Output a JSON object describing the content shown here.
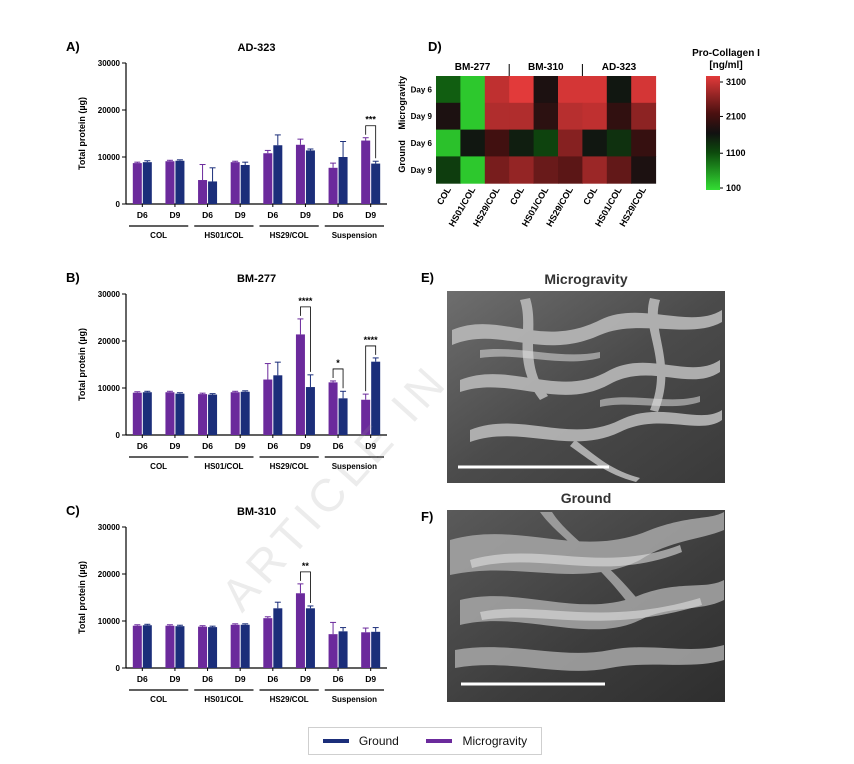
{
  "legend": {
    "ground_label": "Ground",
    "ground_color": "#1b2e7a",
    "micro_label": "Microgravity",
    "micro_color": "#6b2a9c"
  },
  "watermark": "ARTICLE IN",
  "bar_charts": {
    "y_label": "Total protein (µg)",
    "y_ticks": [
      "0",
      "10000",
      "20000",
      "30000"
    ],
    "ylim": [
      0,
      30000
    ],
    "x_tick_labels": [
      "D6",
      "D9"
    ],
    "group_labels": [
      "COL",
      "HS01/COL",
      "HS29/COL",
      "Suspension"
    ]
  },
  "chart_data": [
    {
      "type": "bar",
      "panel": "A)",
      "title": "AD-323",
      "ylabel": "Total protein (µg)",
      "ylim": [
        0,
        30000
      ],
      "groups": [
        "COL",
        "HS01/COL",
        "HS29/COL",
        "Suspension"
      ],
      "categories": [
        "D6",
        "D9",
        "D6",
        "D9",
        "D6",
        "D9",
        "D6",
        "D9"
      ],
      "series": [
        {
          "name": "Microgravity",
          "values": [
            8700,
            9100,
            5100,
            8900,
            10800,
            12600,
            7700,
            13500
          ],
          "errors": [
            200,
            200,
            3300,
            200,
            600,
            1200,
            1000,
            600
          ]
        },
        {
          "name": "Ground",
          "values": [
            8900,
            9200,
            4800,
            8300,
            12500,
            11400,
            10000,
            8600
          ],
          "errors": [
            300,
            200,
            2900,
            600,
            2200,
            300,
            3300,
            500
          ]
        }
      ],
      "significance": [
        {
          "category": 7,
          "label": "***"
        }
      ]
    },
    {
      "type": "bar",
      "panel": "B)",
      "title": "BM-277",
      "ylabel": "Total protein (µg)",
      "ylim": [
        0,
        30000
      ],
      "groups": [
        "COL",
        "HS01/COL",
        "HS29/COL",
        "Suspension"
      ],
      "categories": [
        "D6",
        "D9",
        "D6",
        "D9",
        "D6",
        "D9",
        "D6",
        "D9"
      ],
      "series": [
        {
          "name": "Microgravity",
          "values": [
            9000,
            9100,
            8700,
            9100,
            11800,
            21400,
            11200,
            7500
          ],
          "errors": [
            200,
            200,
            200,
            200,
            3400,
            3300,
            300,
            1200
          ]
        },
        {
          "name": "Ground",
          "values": [
            9100,
            8800,
            8600,
            9200,
            12700,
            10200,
            7800,
            15600
          ],
          "errors": [
            200,
            200,
            200,
            200,
            2800,
            2600,
            1500,
            800
          ]
        }
      ],
      "significance": [
        {
          "category": 5,
          "label": "****"
        },
        {
          "category": 6,
          "label": "*"
        },
        {
          "category": 7,
          "label": "****"
        }
      ]
    },
    {
      "type": "bar",
      "panel": "C)",
      "title": "BM-310",
      "ylabel": "Total protein (µg)",
      "ylim": [
        0,
        30000
      ],
      "groups": [
        "COL",
        "HS01/COL",
        "HS29/COL",
        "Suspension"
      ],
      "categories": [
        "D6",
        "D9",
        "D6",
        "D9",
        "D6",
        "D9",
        "D6",
        "D9"
      ],
      "series": [
        {
          "name": "Microgravity",
          "values": [
            9000,
            9000,
            8800,
            9200,
            10600,
            15900,
            7200,
            7600
          ],
          "errors": [
            200,
            200,
            200,
            200,
            300,
            2000,
            2500,
            900
          ]
        },
        {
          "name": "Ground",
          "values": [
            9100,
            8900,
            8700,
            9200,
            12700,
            12700,
            7800,
            7700
          ],
          "errors": [
            200,
            200,
            200,
            200,
            1300,
            500,
            800,
            900
          ]
        }
      ],
      "significance": [
        {
          "category": 5,
          "label": "**"
        }
      ]
    },
    {
      "type": "heatmap",
      "panel": "D)",
      "column_groups": [
        "BM-277",
        "BM-310",
        "AD-323"
      ],
      "columns": [
        "COL",
        "HS01/COL",
        "HS29/COL",
        "COL",
        "HS01/COL",
        "HS29/COL",
        "COL",
        "HS01/COL",
        "HS29/COL"
      ],
      "row_groups": [
        "Microgravity",
        "Ground"
      ],
      "rows": [
        "Day 6",
        "Day 9",
        "Day 6",
        "Day 9"
      ],
      "values": [
        [
          1000,
          250,
          2950,
          3200,
          1700,
          3100,
          3100,
          1550,
          3100
        ],
        [
          1700,
          250,
          2850,
          2850,
          1850,
          2900,
          2950,
          1900,
          2600
        ],
        [
          300,
          1550,
          2050,
          1500,
          1200,
          2550,
          1550,
          1350,
          1950
        ],
        [
          1250,
          250,
          2450,
          2650,
          2350,
          2250,
          2700,
          2300,
          1700
        ]
      ],
      "colorbar_title": "Pro-Collagen I [ng/ml]",
      "colorbar_ticks": [
        3100,
        2100,
        1100,
        100
      ],
      "colorbar_ticks_text": [
        "3100",
        "2100",
        "1100",
        "100"
      ]
    }
  ],
  "images": [
    {
      "panel": "E)",
      "title": "Microgravity"
    },
    {
      "panel": "F)",
      "title": "Ground"
    }
  ]
}
